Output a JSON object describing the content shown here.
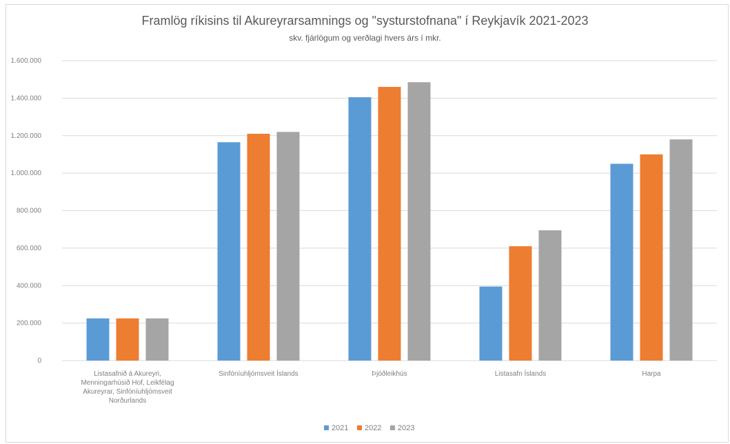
{
  "chart_data": {
    "type": "bar",
    "title": "Framlög ríkisins til Akureyrarsamnings og \"systurstofnana\" í Reykjavík 2021-2023",
    "subtitle": "skv. fjárlögum og verðlagi hvers árs í mkr.",
    "categories": [
      [
        "Listasafnið á Akureyri,",
        "Menningarhúsið Hof, Leikfélag",
        "Akureyrar, Sinfóníuhljómsveit",
        "Norðurlands"
      ],
      [
        "Sinfóníuhljómsveit Íslands"
      ],
      [
        "Þjóðleikhús"
      ],
      [
        "Listasafn Íslands"
      ],
      [
        "Harpa"
      ]
    ],
    "series": [
      {
        "name": "2021",
        "color": "#5b9bd5",
        "values": [
          225000,
          1165000,
          1405000,
          395000,
          1050000
        ]
      },
      {
        "name": "2022",
        "color": "#ed7d31",
        "values": [
          225000,
          1210000,
          1460000,
          610000,
          1100000
        ]
      },
      {
        "name": "2023",
        "color": "#a5a5a5",
        "values": [
          225000,
          1220000,
          1485000,
          695000,
          1180000
        ]
      }
    ],
    "ylim": [
      0,
      1600000
    ],
    "yticks": [
      0,
      200000,
      400000,
      600000,
      800000,
      1000000,
      1200000,
      1400000,
      1600000
    ],
    "ytick_labels": [
      "0",
      "200.000",
      "400.000",
      "600.000",
      "800.000",
      "1.000.000",
      "1.200.000",
      "1.400.000",
      "1.600.000"
    ],
    "grid": true,
    "legend_position": "bottom"
  }
}
